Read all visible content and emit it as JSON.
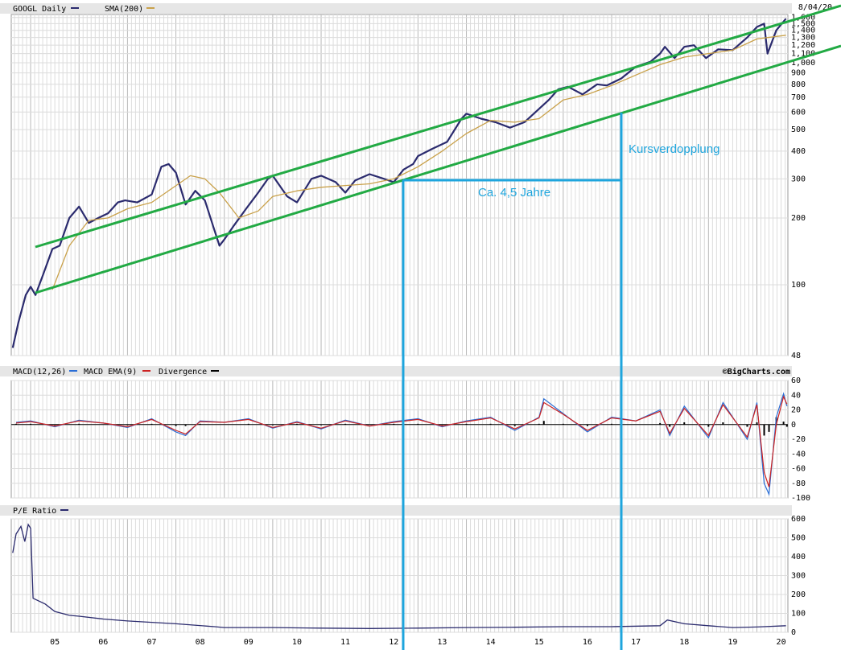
{
  "colors": {
    "price": "#2b2b6e",
    "sma": "#c9a14a",
    "channel": "#22aa44",
    "annotation": "#1ea5dd",
    "macd": "#2a6ed6",
    "macd_ema": "#cc2222",
    "divergence": "#000000",
    "grid_major": "#b8b8b8",
    "grid_minor": "#dcdcdc",
    "header_bg": "#e6e6e6"
  },
  "header": {
    "price_title": "GOOGL Daily",
    "sma_label": "SMA(200)",
    "date": "8/04/20",
    "macd_title": "MACD(12,26)",
    "macd_ema_label": "MACD EMA(9)",
    "divergence_label": "Divergence",
    "source": "©BigCharts.com",
    "pe_title": "P/E Ratio"
  },
  "annotations": {
    "doubling": "Kursverdopplung",
    "duration": "Ca. 4,5 Jahre"
  },
  "chart_data": [
    {
      "type": "line",
      "title": "GOOGL Daily",
      "scale": "log",
      "ylim": [
        48,
        1650
      ],
      "x_ticks": [
        "05",
        "06",
        "07",
        "08",
        "09",
        "10",
        "11",
        "12",
        "13",
        "14",
        "15",
        "16",
        "17",
        "18",
        "19",
        "20"
      ],
      "y_ticks": [
        "1,600",
        "1,500",
        "1,400",
        "1,300",
        "1,200",
        "1,100",
        "1,000",
        "900",
        "800",
        "700",
        "600",
        "500",
        "400",
        "300",
        "200",
        "100",
        "48"
      ],
      "y_tick_values": [
        1600,
        1500,
        1400,
        1300,
        1200,
        1100,
        1000,
        900,
        800,
        700,
        600,
        500,
        400,
        300,
        200,
        100,
        48
      ],
      "grid": true,
      "series": [
        {
          "name": "GOOGL Daily",
          "x": [
            2004.63,
            2004.75,
            2004.9,
            2005.0,
            2005.1,
            2005.25,
            2005.45,
            2005.6,
            2005.8,
            2006.0,
            2006.2,
            2006.4,
            2006.6,
            2006.8,
            2006.95,
            2007.2,
            2007.5,
            2007.7,
            2007.85,
            2008.0,
            2008.2,
            2008.4,
            2008.6,
            2008.8,
            2008.9,
            2009.0,
            2009.2,
            2009.45,
            2009.7,
            2009.9,
            2010.0,
            2010.3,
            2010.5,
            2010.8,
            2011.0,
            2011.3,
            2011.5,
            2011.7,
            2012.0,
            2012.3,
            2012.5,
            2012.7,
            2012.9,
            2013.0,
            2013.3,
            2013.6,
            2013.9,
            2014.0,
            2014.3,
            2014.6,
            2014.9,
            2015.2,
            2015.5,
            2015.7,
            2015.9,
            2016.1,
            2016.4,
            2016.7,
            2016.9,
            2017.2,
            2017.5,
            2017.8,
            2018.0,
            2018.1,
            2018.3,
            2018.5,
            2018.7,
            2018.95,
            2019.2,
            2019.5,
            2019.8,
            2020.0,
            2020.15,
            2020.22,
            2020.4,
            2020.6
          ],
          "y": [
            52,
            68,
            90,
            98,
            90,
            110,
            145,
            150,
            200,
            225,
            190,
            200,
            210,
            235,
            240,
            235,
            255,
            340,
            350,
            320,
            230,
            265,
            240,
            175,
            150,
            160,
            185,
            220,
            260,
            300,
            310,
            250,
            235,
            300,
            310,
            290,
            260,
            295,
            315,
            300,
            290,
            330,
            350,
            380,
            410,
            440,
            560,
            590,
            560,
            540,
            510,
            540,
            620,
            680,
            760,
            780,
            720,
            800,
            790,
            850,
            960,
            1010,
            1100,
            1180,
            1050,
            1180,
            1200,
            1050,
            1150,
            1140,
            1300,
            1450,
            1500,
            1100,
            1400,
            1580
          ]
        },
        {
          "name": "SMA(200)",
          "x": [
            2005.45,
            2005.8,
            2006.2,
            2006.6,
            2007.0,
            2007.5,
            2007.9,
            2008.3,
            2008.6,
            2008.9,
            2009.3,
            2009.7,
            2010.0,
            2010.5,
            2011.0,
            2011.5,
            2012.0,
            2012.5,
            2013.0,
            2013.5,
            2014.0,
            2014.5,
            2015.0,
            2015.5,
            2016.0,
            2016.5,
            2017.0,
            2017.5,
            2018.0,
            2018.5,
            2019.0,
            2019.5,
            2020.0,
            2020.6
          ],
          "y": [
            95,
            150,
            195,
            200,
            220,
            235,
            270,
            310,
            300,
            260,
            200,
            215,
            250,
            265,
            275,
            280,
            285,
            300,
            340,
            400,
            480,
            550,
            540,
            560,
            680,
            720,
            790,
            880,
            980,
            1060,
            1100,
            1140,
            1280,
            1330
          ]
        }
      ]
    },
    {
      "type": "line",
      "title": "MACD(12,26)",
      "ylim": [
        -100,
        60
      ],
      "y_ticks": [
        "60",
        "40",
        "20",
        "0",
        "-20",
        "-40",
        "-60",
        "-80",
        "-100"
      ],
      "y_tick_values": [
        60,
        40,
        20,
        0,
        -20,
        -40,
        -60,
        -80,
        -100
      ],
      "series": [
        {
          "name": "MACD(12,26)",
          "x": [
            2004.7,
            2005.0,
            2005.5,
            2006.0,
            2006.5,
            2007.0,
            2007.5,
            2008.0,
            2008.2,
            2008.5,
            2009.0,
            2009.5,
            2010.0,
            2010.5,
            2011.0,
            2011.5,
            2012.0,
            2012.5,
            2013.0,
            2013.5,
            2014.0,
            2014.5,
            2015.0,
            2015.5,
            2015.6,
            2016.0,
            2016.5,
            2017.0,
            2017.5,
            2018.0,
            2018.2,
            2018.5,
            2019.0,
            2019.3,
            2019.8,
            2020.0,
            2020.15,
            2020.25,
            2020.4,
            2020.55,
            2020.62
          ],
          "y": [
            3,
            5,
            -3,
            6,
            2,
            -4,
            8,
            -10,
            -15,
            5,
            3,
            8,
            -5,
            4,
            -6,
            6,
            -2,
            4,
            8,
            -3,
            5,
            10,
            -8,
            10,
            35,
            15,
            -10,
            10,
            5,
            20,
            -15,
            25,
            -18,
            30,
            -20,
            30,
            -80,
            -95,
            10,
            42,
            25
          ]
        },
        {
          "name": "MACD EMA(9)",
          "x": [
            2004.7,
            2005.0,
            2005.5,
            2006.0,
            2006.5,
            2007.0,
            2007.5,
            2008.0,
            2008.2,
            2008.5,
            2009.0,
            2009.5,
            2010.0,
            2010.5,
            2011.0,
            2011.5,
            2012.0,
            2012.5,
            2013.0,
            2013.5,
            2014.0,
            2014.5,
            2015.0,
            2015.5,
            2015.6,
            2016.0,
            2016.5,
            2017.0,
            2017.5,
            2018.0,
            2018.2,
            2018.5,
            2019.0,
            2019.3,
            2019.8,
            2020.0,
            2020.15,
            2020.25,
            2020.4,
            2020.55,
            2020.62
          ],
          "y": [
            2,
            4,
            -2,
            5,
            2,
            -3,
            7,
            -8,
            -13,
            4,
            3,
            7,
            -4,
            3,
            -5,
            5,
            -2,
            3,
            7,
            -2,
            4,
            9,
            -6,
            9,
            30,
            14,
            -8,
            9,
            5,
            18,
            -12,
            22,
            -15,
            27,
            -17,
            27,
            -65,
            -85,
            0,
            38,
            28
          ]
        }
      ]
    },
    {
      "type": "line",
      "title": "P/E Ratio",
      "ylim": [
        0,
        600
      ],
      "y_ticks": [
        "600",
        "500",
        "400",
        "300",
        "200",
        "100",
        "0"
      ],
      "y_tick_values": [
        600,
        500,
        400,
        300,
        200,
        100,
        0
      ],
      "series": [
        {
          "name": "P/E Ratio",
          "x": [
            2004.63,
            2004.7,
            2004.8,
            2004.88,
            2004.95,
            2005.0,
            2005.05,
            2005.3,
            2005.5,
            2005.8,
            2006.0,
            2006.5,
            2007.0,
            2008.0,
            2008.8,
            2009.0,
            2010.0,
            2011.0,
            2012.0,
            2013.0,
            2014.0,
            2015.0,
            2016.0,
            2017.0,
            2018.0,
            2018.15,
            2018.5,
            2019.0,
            2019.5,
            2020.0,
            2020.6
          ],
          "y": [
            420,
            520,
            560,
            480,
            570,
            550,
            180,
            150,
            110,
            90,
            85,
            70,
            60,
            45,
            30,
            25,
            25,
            22,
            20,
            22,
            25,
            27,
            30,
            30,
            35,
            65,
            45,
            35,
            25,
            28,
            35
          ]
        }
      ]
    }
  ]
}
